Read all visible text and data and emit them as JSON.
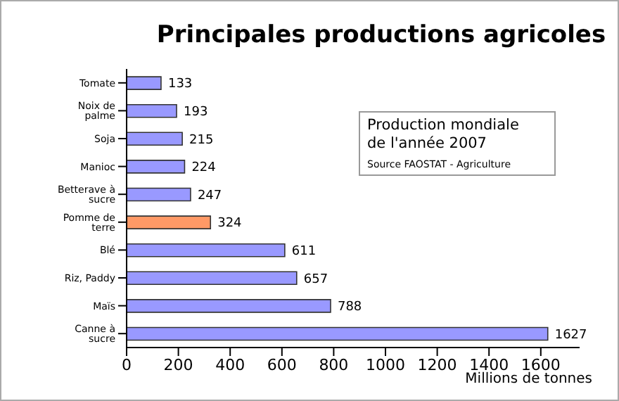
{
  "chart_data": {
    "type": "bar",
    "orientation": "horizontal",
    "title": "Principales productions agricoles",
    "xlabel": "Millions de tonnes",
    "categories": [
      "Tomate",
      "Noix de palme",
      "Soja",
      "Manioc",
      "Betterave à sucre",
      "Pomme de terre",
      "Blé",
      "Riz, Paddy",
      "Maïs",
      "Canne à sucre"
    ],
    "values": [
      133,
      193,
      215,
      224,
      247,
      324,
      611,
      657,
      788,
      1627
    ],
    "colors": [
      "#9999ff",
      "#9999ff",
      "#9999ff",
      "#9999ff",
      "#9999ff",
      "#ff9966",
      "#9999ff",
      "#9999ff",
      "#9999ff",
      "#9999ff"
    ],
    "xlim": [
      0,
      1750
    ],
    "xticks": [
      0,
      200,
      400,
      600,
      800,
      1000,
      1200,
      1400,
      1600
    ],
    "data_labels": true,
    "grid": false,
    "legend": false,
    "annotations": [
      "Production mondiale\nde l'année 2007",
      "Source FAOSTAT - Agriculture"
    ]
  }
}
